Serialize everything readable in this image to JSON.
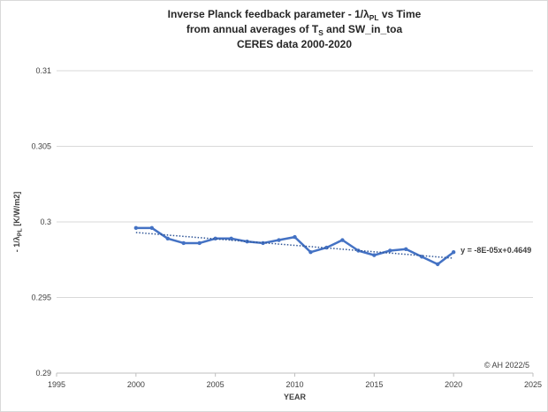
{
  "chart_data": {
    "type": "line",
    "title": [
      [
        {
          "text": "Inverse Planck feedback parameter - 1/λ"
        },
        {
          "text": "PL",
          "sub": true
        },
        {
          "text": " vs Time"
        }
      ],
      [
        {
          "text": "from annual averages of T"
        },
        {
          "text": "S",
          "sub": true
        },
        {
          "text": " and SW_in_toa"
        }
      ],
      [
        {
          "text": "CERES data 2000-2020"
        }
      ]
    ],
    "xlabel": "YEAR",
    "ylabel": [
      {
        "text": "- 1/λ"
      },
      {
        "text": "PL",
        "sub": true
      },
      {
        "text": "  [K/W/m2]"
      }
    ],
    "x": [
      2000,
      2001,
      2002,
      2003,
      2004,
      2005,
      2006,
      2007,
      2008,
      2009,
      2010,
      2011,
      2012,
      2013,
      2014,
      2015,
      2016,
      2017,
      2018,
      2019,
      2020
    ],
    "series": [
      {
        "name": null,
        "color": "#4472c4",
        "values": [
          0.2996,
          0.2996,
          0.2989,
          0.2986,
          0.2986,
          0.2989,
          0.2989,
          0.2987,
          0.2986,
          0.2988,
          0.299,
          0.298,
          0.2983,
          0.2988,
          0.2981,
          0.2978,
          0.2981,
          0.2982,
          0.2977,
          0.2972,
          0.298
        ]
      }
    ],
    "trendline": {
      "x": [
        2000,
        2020
      ],
      "values": [
        0.2993,
        0.2976
      ],
      "label": "y = -8E-05x+0.4649",
      "color": "#2f5597"
    },
    "annotation": "© AH 2022/5",
    "xlim": [
      1995,
      2025
    ],
    "xticks": [
      1995,
      2000,
      2005,
      2010,
      2015,
      2020,
      2025
    ],
    "ylim": [
      0.29,
      0.31
    ],
    "yticks": [
      0.29,
      0.295,
      0.3,
      0.305,
      0.31
    ],
    "grid": true
  }
}
